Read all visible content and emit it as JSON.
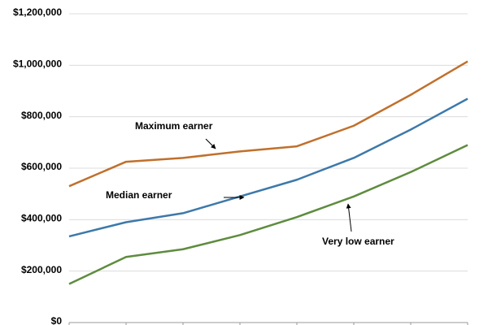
{
  "chart_data": {
    "type": "line",
    "categories": [
      null,
      null,
      null,
      null,
      null,
      null,
      null,
      null
    ],
    "series": [
      {
        "name": "Maximum earner",
        "color": "#c0702c",
        "values": [
          530000,
          625000,
          640000,
          665000,
          685000,
          765000,
          885000,
          1015000
        ]
      },
      {
        "name": "Median earner",
        "color": "#3d79aa",
        "values": [
          335000,
          390000,
          425000,
          490000,
          555000,
          640000,
          750000,
          870000
        ]
      },
      {
        "name": "Very low earner",
        "color": "#5e8c3f",
        "values": [
          150000,
          255000,
          285000,
          340000,
          410000,
          490000,
          585000,
          690000
        ]
      }
    ],
    "ylim": [
      0,
      1200000
    ],
    "yticks": [
      {
        "value": 0,
        "label": "$0"
      },
      {
        "value": 200000,
        "label": "$200,000"
      },
      {
        "value": 400000,
        "label": "$400,000"
      },
      {
        "value": 600000,
        "label": "$600,000"
      },
      {
        "value": 800000,
        "label": "$800,000"
      },
      {
        "value": 1000000,
        "label": "$1,000,000"
      },
      {
        "value": 1200000,
        "label": "$1,200,000"
      }
    ],
    "grid": true
  }
}
